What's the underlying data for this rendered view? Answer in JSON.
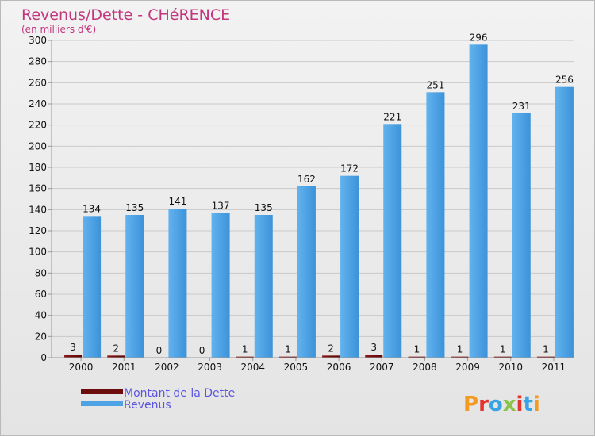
{
  "chart_data": {
    "type": "bar",
    "title": "Revenus/Dette - CHéRENCE",
    "subtitle": "(en milliers d'€)",
    "categories": [
      "2000",
      "2001",
      "2002",
      "2003",
      "2004",
      "2005",
      "2006",
      "2007",
      "2008",
      "2009",
      "2010",
      "2011"
    ],
    "series": [
      {
        "name": "Montant de la Dette",
        "color": "#6b0d0d",
        "values": [
          3,
          2,
          0,
          0,
          1,
          1,
          2,
          3,
          1,
          1,
          1,
          1
        ]
      },
      {
        "name": "Revenus",
        "color": "#4da3e4",
        "values": [
          134,
          135,
          141,
          137,
          135,
          162,
          172,
          221,
          251,
          296,
          231,
          256
        ]
      }
    ],
    "ylim": [
      0,
      300
    ],
    "yticks": [
      0,
      20,
      40,
      60,
      80,
      100,
      120,
      140,
      160,
      180,
      200,
      220,
      240,
      260,
      280,
      300
    ],
    "grid": true,
    "legend": "bottom-left"
  },
  "logo": {
    "text": "Proxiti"
  }
}
